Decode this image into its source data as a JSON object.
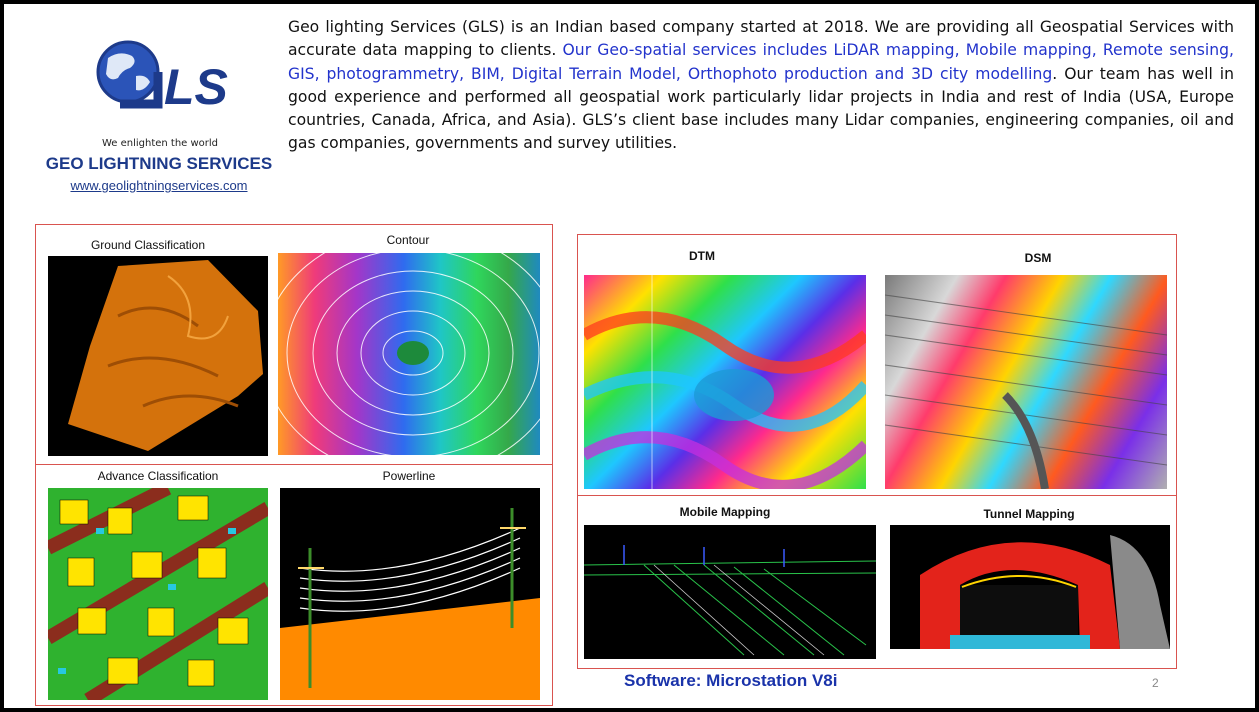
{
  "logo": {
    "letters": "GLS",
    "tagline": "We enlighten the world",
    "company": "GEO LIGHTNING SERVICES",
    "website": "www.geolightningservices.com"
  },
  "intro": {
    "part1": "Geo lighting Services (GLS) is an Indian based company started at 2018. We are providing all Geospatial Services with accurate data mapping to clients. ",
    "highlight": "Our Geo-spatial services includes LiDAR mapping, Mobile mapping, Remote sensing, GIS, photogrammetry, BIM, Digital Terrain Model, Orthophoto production and 3D city modelling",
    "part2": ". Our team has well in good experience and performed all geospatial work particularly lidar projects in India and rest of India (USA, Europe countries, Canada, Africa, and Asia). GLS’s client base includes many Lidar companies, engineering companies, oil and gas companies, governments and survey utilities."
  },
  "left_panel": {
    "ground_classification": "Ground Classification",
    "contour": "Contour",
    "advance_classification": "Advance Classification",
    "powerline": "Powerline"
  },
  "right_panel": {
    "dtm": "DTM",
    "dsm": "DSM",
    "mobile_mapping": "Mobile Mapping",
    "tunnel_mapping": "Tunnel Mapping"
  },
  "footer": {
    "software": "Software: Microstation V8i",
    "page_number": "2"
  },
  "colors": {
    "brand_blue": "#1d3a8a",
    "highlight_blue": "#2233cc",
    "panel_border": "#d9534f"
  }
}
